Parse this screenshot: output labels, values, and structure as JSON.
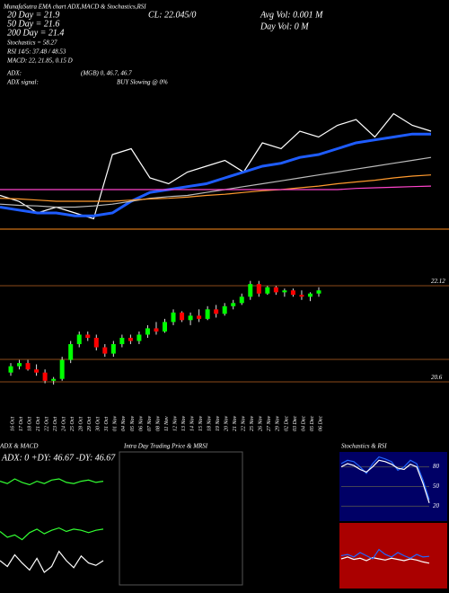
{
  "chart_data": [
    {
      "type": "line",
      "title": "MunafaSutra EMA chart ADX,MACD & Stochastics,RSI",
      "annotations": [
        "20 Day = 21.9",
        "50 Day = 21.6",
        "200 Day = 21.4",
        "Stochastics = 58.27",
        "RSI 14/5: 37.48 / 48.53",
        "MACD: 22, 21.85, 0.15 D",
        "ADX:",
        "ADX signal:",
        "(MGB) 0, 46.7, 46.7",
        "BUY Slowing @ 0%",
        "CL: 22.045/0",
        "Avg Vol: 0.001 M",
        "Day Vol: 0 M"
      ],
      "ylim": [
        20.4,
        22.4
      ],
      "series": [
        {
          "color": "#ffffff",
          "values": [
            20.9,
            20.8,
            20.6,
            20.7,
            20.6,
            20.5,
            21.6,
            21.7,
            21.2,
            21.1,
            21.3,
            21.4,
            21.5,
            21.3,
            21.8,
            21.7,
            22.0,
            21.9,
            22.1,
            22.2,
            21.9,
            22.3,
            22.1,
            22.0
          ]
        },
        {
          "color": "#1e5cff",
          "values": [
            20.7,
            20.65,
            20.6,
            20.6,
            20.55,
            20.55,
            20.6,
            20.8,
            20.95,
            21.0,
            21.05,
            21.1,
            21.2,
            21.3,
            21.4,
            21.45,
            21.55,
            21.6,
            21.7,
            21.8,
            21.85,
            21.9,
            21.95,
            21.95
          ]
        },
        {
          "color": "#bbbbbb",
          "values": [
            20.75,
            20.73,
            20.72,
            20.7,
            20.7,
            20.72,
            20.75,
            20.8,
            20.85,
            20.88,
            20.9,
            20.95,
            21.0,
            21.05,
            21.1,
            21.15,
            21.2,
            21.25,
            21.3,
            21.35,
            21.4,
            21.45,
            21.5,
            21.55
          ]
        },
        {
          "color": "#ff9a2e",
          "values": [
            20.85,
            20.84,
            20.82,
            20.8,
            20.8,
            20.8,
            20.8,
            20.82,
            20.84,
            20.85,
            20.87,
            20.9,
            20.92,
            20.95,
            20.98,
            21.0,
            21.03,
            21.06,
            21.1,
            21.13,
            21.16,
            21.2,
            21.23,
            21.25
          ]
        },
        {
          "color": "#ff44cc",
          "values": [
            21.0,
            21.0,
            21.0,
            21.0,
            21.0,
            21.0,
            21.0,
            21.0,
            21.0,
            21.0,
            21.0,
            21.0,
            21.0,
            21.0,
            21.0,
            21.0,
            21.0,
            21.0,
            21.0,
            21.02,
            21.03,
            21.04,
            21.05,
            21.06
          ]
        }
      ]
    },
    {
      "type": "candlestick",
      "categories": [
        "16 Oct",
        "17 Oct",
        "18 Oct",
        "21 Oct",
        "22 Oct",
        "23 Oct",
        "24 Oct",
        "25 Oct",
        "28 Oct",
        "29 Oct",
        "30 Oct",
        "31 Oct",
        "01 Nov",
        "04 Nov",
        "05 Nov",
        "06 Nov",
        "07 Nov",
        "08 Nov",
        "11 Nov",
        "12 Nov",
        "13 Nov",
        "14 Nov",
        "15 Nov",
        "18 Nov",
        "19 Nov",
        "20 Nov",
        "21 Nov",
        "22 Nov",
        "25 Nov",
        "26 Nov",
        "27 Nov",
        "29 Nov",
        "02 Dec",
        "03 Dec",
        "04 Dec",
        "05 Dec",
        "06 Dec"
      ],
      "open": [
        20.75,
        20.85,
        20.9,
        20.8,
        20.75,
        20.62,
        20.65,
        20.95,
        21.2,
        21.35,
        21.3,
        21.15,
        21.05,
        21.2,
        21.3,
        21.25,
        21.35,
        21.45,
        21.4,
        21.55,
        21.7,
        21.58,
        21.65,
        21.6,
        21.75,
        21.68,
        21.8,
        21.85,
        21.95,
        22.15,
        22.0,
        22.1,
        22.02,
        22.05,
        21.98,
        21.95,
        22.0
      ],
      "high": [
        20.9,
        20.95,
        20.95,
        20.88,
        20.8,
        20.68,
        21.0,
        21.25,
        21.4,
        21.4,
        21.35,
        21.2,
        21.25,
        21.35,
        21.35,
        21.4,
        21.5,
        21.55,
        21.6,
        21.75,
        21.72,
        21.7,
        21.75,
        21.8,
        21.82,
        21.85,
        21.9,
        22.0,
        22.2,
        22.2,
        22.12,
        22.12,
        22.08,
        22.08,
        22.05,
        22.02,
        22.1
      ],
      "low": [
        20.7,
        20.8,
        20.78,
        20.7,
        20.58,
        20.56,
        20.62,
        20.9,
        21.15,
        21.25,
        21.1,
        21.0,
        21.0,
        21.15,
        21.2,
        21.2,
        21.3,
        21.35,
        21.38,
        21.5,
        21.55,
        21.5,
        21.55,
        21.58,
        21.62,
        21.65,
        21.75,
        21.82,
        21.9,
        21.95,
        21.98,
        21.98,
        21.95,
        21.95,
        21.9,
        21.88,
        21.95
      ],
      "close": [
        20.85,
        20.9,
        20.8,
        20.75,
        20.62,
        20.65,
        20.95,
        21.2,
        21.35,
        21.3,
        21.15,
        21.05,
        21.2,
        21.3,
        21.25,
        21.35,
        21.45,
        21.4,
        21.55,
        21.7,
        21.58,
        21.65,
        21.6,
        21.75,
        21.68,
        21.8,
        21.85,
        21.95,
        22.15,
        22.0,
        22.1,
        22.02,
        22.05,
        21.98,
        21.95,
        22.0,
        22.05
      ],
      "up_color": "#00ff00",
      "down_color": "#ff0000",
      "ylim": [
        20.39,
        22.38
      ],
      "yticks": [
        22.12,
        20.6
      ]
    },
    {
      "type": "line",
      "title": "ADX & MACD",
      "annotations": [
        "ADX: 0 +DY: 46.67 -DY: 46.67"
      ],
      "ylim": [
        0,
        100
      ],
      "series": [
        {
          "color": "#33ff33",
          "values": [
            45,
            40,
            42,
            38,
            44,
            47,
            43,
            46,
            48,
            45,
            47,
            46,
            44,
            46,
            47
          ]
        },
        {
          "color": "#ffffff",
          "values": [
            20,
            15,
            25,
            18,
            12,
            22,
            10,
            15,
            28,
            20,
            14,
            24,
            18,
            16,
            20
          ]
        },
        {
          "color": "#33ff33",
          "values": [
            88,
            86,
            90,
            87,
            85,
            88,
            86,
            89,
            90,
            87,
            86,
            88,
            89,
            87,
            88
          ]
        }
      ]
    },
    {
      "type": "box",
      "title": "Intra Day Trading Price & MRSI"
    },
    {
      "type": "line",
      "title": "Stochastics & RSI",
      "ylim": [
        0,
        100
      ],
      "yticks": [
        80,
        50,
        20
      ],
      "series": [
        {
          "color": "#2266ff",
          "values": [
            85,
            90,
            88,
            80,
            70,
            85,
            95,
            92,
            88,
            75,
            80,
            90,
            85,
            60,
            30
          ]
        },
        {
          "color": "#ffffff",
          "values": [
            80,
            85,
            82,
            76,
            72,
            80,
            90,
            88,
            84,
            78,
            76,
            84,
            80,
            55,
            25
          ]
        }
      ],
      "rsi_series": [
        {
          "color": "#ffffff",
          "values": [
            45,
            48,
            44,
            46,
            42,
            47,
            45,
            43,
            46,
            44,
            42,
            45,
            43,
            40,
            38
          ]
        },
        {
          "color": "#2266ff",
          "values": [
            50,
            52,
            48,
            55,
            50,
            45,
            60,
            52,
            48,
            55,
            50,
            46,
            52,
            48,
            49
          ]
        }
      ]
    }
  ]
}
